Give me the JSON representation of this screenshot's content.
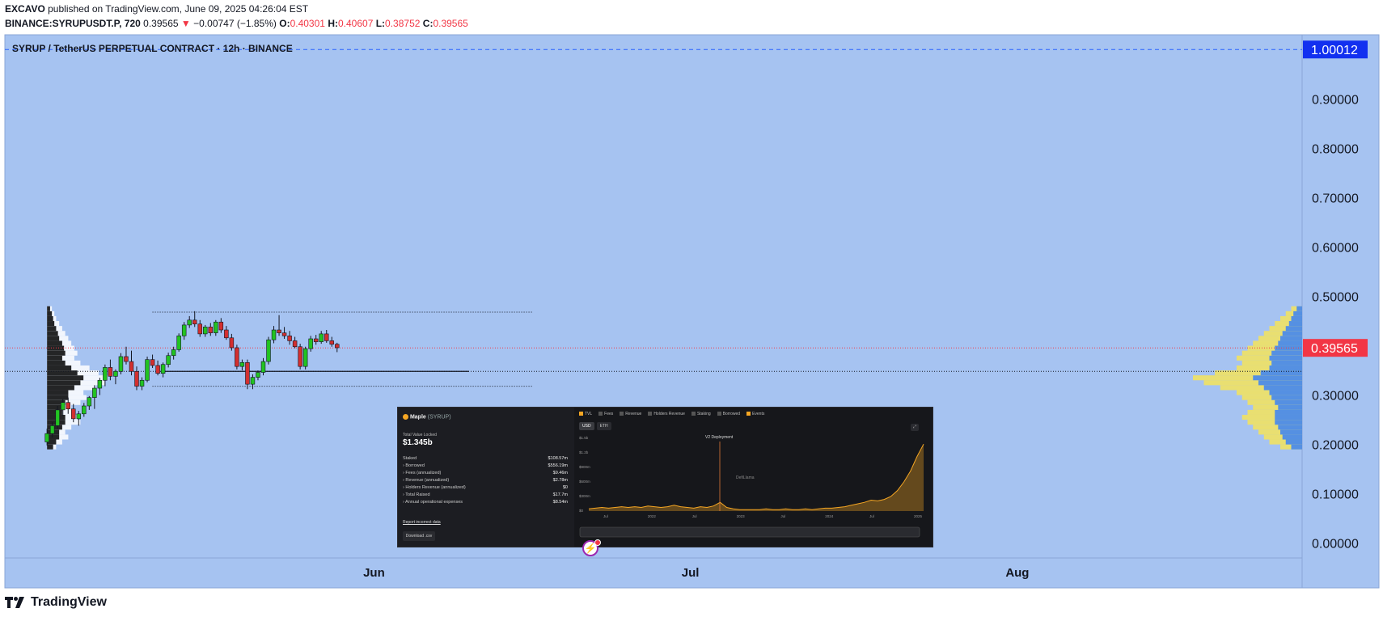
{
  "header": {
    "publisher": "EXCAVO",
    "published_text": " published on TradingView.com, June 09, 2025 04:26:04 EST",
    "symbol": "BINANCE:SYRUPUSDT.P, 720",
    "last": "0.39565",
    "arrow": "▼",
    "change": "−0.00747 (−1.85%)",
    "o_label": "O:",
    "o_value": "0.40301",
    "h_label": "H:",
    "h_value": "0.40607",
    "l_label": "L:",
    "l_value": "0.38752",
    "c_label": "C:",
    "c_value": "0.39565"
  },
  "brand": {
    "name": "TradingView"
  },
  "colors": {
    "background": "#a6c3f1",
    "up": "#22c322",
    "down": "#d32f2f",
    "axis_badge_blue": "#2962ff",
    "axis_badge_red": "#f23645",
    "volume_profile_up": "#ffffff",
    "volume_profile_down": "#000000",
    "vrvp_right_up": "#f5e45a",
    "vrvp_right_down": "#3b82f6"
  },
  "chart_data": {
    "type": "candlestick",
    "title": "SYRUP / TetherUS PERPETUAL CONTRACT · 12h · BINANCE",
    "y_ticks": [
      0.0,
      0.1,
      0.2,
      0.3,
      0.5,
      0.6,
      0.7,
      0.8,
      0.9
    ],
    "y_tick_labels": [
      "0.00000",
      "0.10000",
      "0.20000",
      "0.30000",
      "0.50000",
      "0.60000",
      "0.70000",
      "0.80000",
      "0.90000"
    ],
    "ylim": [
      -0.03,
      1.03
    ],
    "x_labels": [
      "Jun",
      "Jul",
      "Aug"
    ],
    "x_label_positions": [
      "2025-06-01",
      "2025-07-01",
      "2025-08-01"
    ],
    "xlim": [
      "2025-04-27",
      "2025-08-28"
    ],
    "price_lines": [
      {
        "value": 1.00012,
        "label": "1.00012",
        "style": "dashed",
        "color": "#2962ff"
      },
      {
        "value": 0.39565,
        "label": "0.39565",
        "style": "dotted",
        "color": "#f23645"
      },
      {
        "value": 0.348,
        "label": "",
        "style": "dotted",
        "color": "#131722"
      }
    ],
    "range_box": {
      "top": 0.468,
      "bottom": 0.318,
      "start": "2025-05-11",
      "end": "2025-06-16"
    },
    "poc_line": {
      "value": 0.348,
      "start": "2025-05-12",
      "end": "2025-06-10"
    },
    "candles": [
      {
        "t": "2025-05-01 00:00",
        "o": 0.205,
        "h": 0.232,
        "l": 0.198,
        "c": 0.222
      },
      {
        "t": "2025-05-01 12:00",
        "o": 0.222,
        "h": 0.245,
        "l": 0.214,
        "c": 0.238
      },
      {
        "t": "2025-05-02 00:00",
        "o": 0.238,
        "h": 0.278,
        "l": 0.232,
        "c": 0.27
      },
      {
        "t": "2025-05-02 12:00",
        "o": 0.27,
        "h": 0.292,
        "l": 0.258,
        "c": 0.285
      },
      {
        "t": "2025-05-03 00:00",
        "o": 0.285,
        "h": 0.295,
        "l": 0.262,
        "c": 0.272
      },
      {
        "t": "2025-05-03 12:00",
        "o": 0.272,
        "h": 0.282,
        "l": 0.245,
        "c": 0.252
      },
      {
        "t": "2025-05-04 00:00",
        "o": 0.252,
        "h": 0.268,
        "l": 0.238,
        "c": 0.262
      },
      {
        "t": "2025-05-04 12:00",
        "o": 0.262,
        "h": 0.284,
        "l": 0.256,
        "c": 0.278
      },
      {
        "t": "2025-05-05 00:00",
        "o": 0.278,
        "h": 0.298,
        "l": 0.27,
        "c": 0.295
      },
      {
        "t": "2025-05-05 12:00",
        "o": 0.295,
        "h": 0.32,
        "l": 0.272,
        "c": 0.314
      },
      {
        "t": "2025-05-06 00:00",
        "o": 0.314,
        "h": 0.335,
        "l": 0.3,
        "c": 0.33
      },
      {
        "t": "2025-05-06 12:00",
        "o": 0.33,
        "h": 0.362,
        "l": 0.318,
        "c": 0.356
      },
      {
        "t": "2025-05-07 00:00",
        "o": 0.356,
        "h": 0.372,
        "l": 0.33,
        "c": 0.338
      },
      {
        "t": "2025-05-07 12:00",
        "o": 0.338,
        "h": 0.352,
        "l": 0.322,
        "c": 0.348
      },
      {
        "t": "2025-05-08 00:00",
        "o": 0.348,
        "h": 0.385,
        "l": 0.342,
        "c": 0.378
      },
      {
        "t": "2025-05-08 12:00",
        "o": 0.378,
        "h": 0.398,
        "l": 0.362,
        "c": 0.368
      },
      {
        "t": "2025-05-09 00:00",
        "o": 0.368,
        "h": 0.39,
        "l": 0.34,
        "c": 0.348
      },
      {
        "t": "2025-05-09 12:00",
        "o": 0.348,
        "h": 0.358,
        "l": 0.31,
        "c": 0.318
      },
      {
        "t": "2025-05-10 00:00",
        "o": 0.318,
        "h": 0.336,
        "l": 0.31,
        "c": 0.33
      },
      {
        "t": "2025-05-10 12:00",
        "o": 0.33,
        "h": 0.378,
        "l": 0.326,
        "c": 0.372
      },
      {
        "t": "2025-05-11 00:00",
        "o": 0.372,
        "h": 0.382,
        "l": 0.355,
        "c": 0.36
      },
      {
        "t": "2025-05-11 12:00",
        "o": 0.36,
        "h": 0.37,
        "l": 0.34,
        "c": 0.344
      },
      {
        "t": "2025-05-12 00:00",
        "o": 0.344,
        "h": 0.366,
        "l": 0.336,
        "c": 0.362
      },
      {
        "t": "2025-05-12 12:00",
        "o": 0.362,
        "h": 0.386,
        "l": 0.356,
        "c": 0.38
      },
      {
        "t": "2025-05-13 00:00",
        "o": 0.38,
        "h": 0.398,
        "l": 0.372,
        "c": 0.392
      },
      {
        "t": "2025-05-13 12:00",
        "o": 0.392,
        "h": 0.425,
        "l": 0.388,
        "c": 0.42
      },
      {
        "t": "2025-05-14 00:00",
        "o": 0.42,
        "h": 0.448,
        "l": 0.412,
        "c": 0.442
      },
      {
        "t": "2025-05-14 12:00",
        "o": 0.442,
        "h": 0.46,
        "l": 0.436,
        "c": 0.452
      },
      {
        "t": "2025-05-15 00:00",
        "o": 0.452,
        "h": 0.47,
        "l": 0.438,
        "c": 0.444
      },
      {
        "t": "2025-05-15 12:00",
        "o": 0.444,
        "h": 0.452,
        "l": 0.418,
        "c": 0.424
      },
      {
        "t": "2025-05-16 00:00",
        "o": 0.424,
        "h": 0.442,
        "l": 0.418,
        "c": 0.438
      },
      {
        "t": "2025-05-16 12:00",
        "o": 0.438,
        "h": 0.446,
        "l": 0.42,
        "c": 0.426
      },
      {
        "t": "2025-05-17 00:00",
        "o": 0.426,
        "h": 0.452,
        "l": 0.42,
        "c": 0.448
      },
      {
        "t": "2025-05-17 12:00",
        "o": 0.448,
        "h": 0.456,
        "l": 0.426,
        "c": 0.432
      },
      {
        "t": "2025-05-18 00:00",
        "o": 0.432,
        "h": 0.44,
        "l": 0.412,
        "c": 0.416
      },
      {
        "t": "2025-05-18 12:00",
        "o": 0.416,
        "h": 0.424,
        "l": 0.39,
        "c": 0.396
      },
      {
        "t": "2025-05-19 00:00",
        "o": 0.396,
        "h": 0.402,
        "l": 0.352,
        "c": 0.358
      },
      {
        "t": "2025-05-19 12:00",
        "o": 0.358,
        "h": 0.372,
        "l": 0.35,
        "c": 0.366
      },
      {
        "t": "2025-05-20 00:00",
        "o": 0.366,
        "h": 0.372,
        "l": 0.312,
        "c": 0.322
      },
      {
        "t": "2025-05-20 12:00",
        "o": 0.322,
        "h": 0.342,
        "l": 0.312,
        "c": 0.336
      },
      {
        "t": "2025-05-21 00:00",
        "o": 0.336,
        "h": 0.35,
        "l": 0.33,
        "c": 0.346
      },
      {
        "t": "2025-05-21 12:00",
        "o": 0.346,
        "h": 0.375,
        "l": 0.34,
        "c": 0.368
      },
      {
        "t": "2025-05-22 00:00",
        "o": 0.368,
        "h": 0.418,
        "l": 0.362,
        "c": 0.412
      },
      {
        "t": "2025-05-22 12:00",
        "o": 0.412,
        "h": 0.44,
        "l": 0.405,
        "c": 0.432
      },
      {
        "t": "2025-05-23 00:00",
        "o": 0.432,
        "h": 0.462,
        "l": 0.42,
        "c": 0.426
      },
      {
        "t": "2025-05-23 12:00",
        "o": 0.426,
        "h": 0.438,
        "l": 0.414,
        "c": 0.42
      },
      {
        "t": "2025-05-24 00:00",
        "o": 0.42,
        "h": 0.43,
        "l": 0.402,
        "c": 0.41
      },
      {
        "t": "2025-05-24 12:00",
        "o": 0.41,
        "h": 0.418,
        "l": 0.395,
        "c": 0.398
      },
      {
        "t": "2025-05-25 00:00",
        "o": 0.398,
        "h": 0.404,
        "l": 0.352,
        "c": 0.358
      },
      {
        "t": "2025-05-25 12:00",
        "o": 0.358,
        "h": 0.398,
        "l": 0.352,
        "c": 0.394
      },
      {
        "t": "2025-05-26 00:00",
        "o": 0.394,
        "h": 0.42,
        "l": 0.388,
        "c": 0.414
      },
      {
        "t": "2025-05-26 12:00",
        "o": 0.414,
        "h": 0.422,
        "l": 0.402,
        "c": 0.408
      },
      {
        "t": "2025-05-27 00:00",
        "o": 0.408,
        "h": 0.43,
        "l": 0.404,
        "c": 0.424
      },
      {
        "t": "2025-05-27 12:00",
        "o": 0.424,
        "h": 0.432,
        "l": 0.406,
        "c": 0.41
      },
      {
        "t": "2025-05-28 00:00",
        "o": 0.41,
        "h": 0.418,
        "l": 0.398,
        "c": 0.403
      },
      {
        "t": "2025-05-28 12:00",
        "o": 0.403,
        "h": 0.406,
        "l": 0.387,
        "c": 0.396
      }
    ],
    "volume_profile_left": {
      "start": "2025-05-01",
      "bins_bottom": 0.19,
      "bins_top": 0.48,
      "up": [
        0.15,
        0.25,
        0.35,
        0.3,
        0.4,
        0.55,
        0.5,
        0.45,
        0.4,
        0.55,
        0.65,
        0.6,
        0.8,
        0.95,
        1.0,
        0.85,
        0.7,
        0.55,
        0.45,
        0.5,
        0.45,
        0.4,
        0.35,
        0.3,
        0.25,
        0.2,
        0.15,
        0.12,
        0.08
      ],
      "down": [
        0.1,
        0.15,
        0.2,
        0.2,
        0.25,
        0.3,
        0.3,
        0.25,
        0.25,
        0.3,
        0.35,
        0.35,
        0.45,
        0.55,
        0.6,
        0.5,
        0.4,
        0.3,
        0.25,
        0.3,
        0.28,
        0.25,
        0.2,
        0.18,
        0.15,
        0.12,
        0.1,
        0.08,
        0.05
      ]
    },
    "volume_profile_right": {
      "bins_bottom": 0.19,
      "bins_top": 0.48,
      "up": [
        0.2,
        0.3,
        0.35,
        0.4,
        0.45,
        0.5,
        0.55,
        0.5,
        0.45,
        0.5,
        0.55,
        0.6,
        0.75,
        0.9,
        1.0,
        0.8,
        0.6,
        0.55,
        0.6,
        0.55,
        0.5,
        0.45,
        0.4,
        0.35,
        0.3,
        0.25,
        0.2,
        0.15,
        0.1
      ],
      "down": [
        0.1,
        0.15,
        0.18,
        0.2,
        0.22,
        0.25,
        0.25,
        0.25,
        0.22,
        0.25,
        0.28,
        0.3,
        0.35,
        0.4,
        0.45,
        0.38,
        0.3,
        0.28,
        0.3,
        0.28,
        0.25,
        0.22,
        0.2,
        0.18,
        0.15,
        0.12,
        0.1,
        0.08,
        0.05
      ]
    }
  },
  "inset": {
    "protocol": "Maple",
    "ticker": "(SYRUP)",
    "tvl_label": "Total Value Locked",
    "tvl_value": "$1.345b",
    "rows": [
      {
        "label": "Staked",
        "value": "$108.57m"
      },
      {
        "label": "› Borrowed",
        "value": "$556.19m"
      },
      {
        "label": "› Fees (annualized)",
        "value": "$9.46m"
      },
      {
        "label": "› Revenue (annualized)",
        "value": "$2.78m"
      },
      {
        "label": "› Holders Revenue (annualized)",
        "value": "$0"
      },
      {
        "label": "› Total Raised",
        "value": "$17.7m"
      },
      {
        "label": "› Annual operational expenses",
        "value": "$8.54m"
      }
    ],
    "report": "Report incorrect data",
    "download": "Download .csv",
    "legend": [
      "TVL",
      "Fees",
      "Revenue",
      "Holders Revenue",
      "Staking",
      "Borrowed",
      "Events"
    ],
    "units": [
      "USD",
      "ETH"
    ],
    "y_labels": [
      "$1.5b",
      "$1.2b",
      "$900m",
      "$600m",
      "$300m",
      "$0"
    ],
    "x_labels": [
      "Jul",
      "2022",
      "Jul",
      "2023",
      "Jul",
      "2024",
      "Jul",
      "2025"
    ],
    "annotation": "V2 Deployment",
    "watermark": "DefiLlama",
    "tvl_series": [
      0.03,
      0.04,
      0.05,
      0.04,
      0.05,
      0.06,
      0.05,
      0.06,
      0.05,
      0.07,
      0.06,
      0.05,
      0.06,
      0.08,
      0.06,
      0.05,
      0.04,
      0.06,
      0.05,
      0.07,
      0.12,
      0.05,
      0.03,
      0.02,
      0.02,
      0.02,
      0.02,
      0.03,
      0.02,
      0.02,
      0.03,
      0.02,
      0.02,
      0.03,
      0.02,
      0.03,
      0.04,
      0.04,
      0.05,
      0.06,
      0.08,
      0.1,
      0.12,
      0.15,
      0.14,
      0.16,
      0.2,
      0.28,
      0.4,
      0.55,
      0.75,
      0.92
    ]
  }
}
